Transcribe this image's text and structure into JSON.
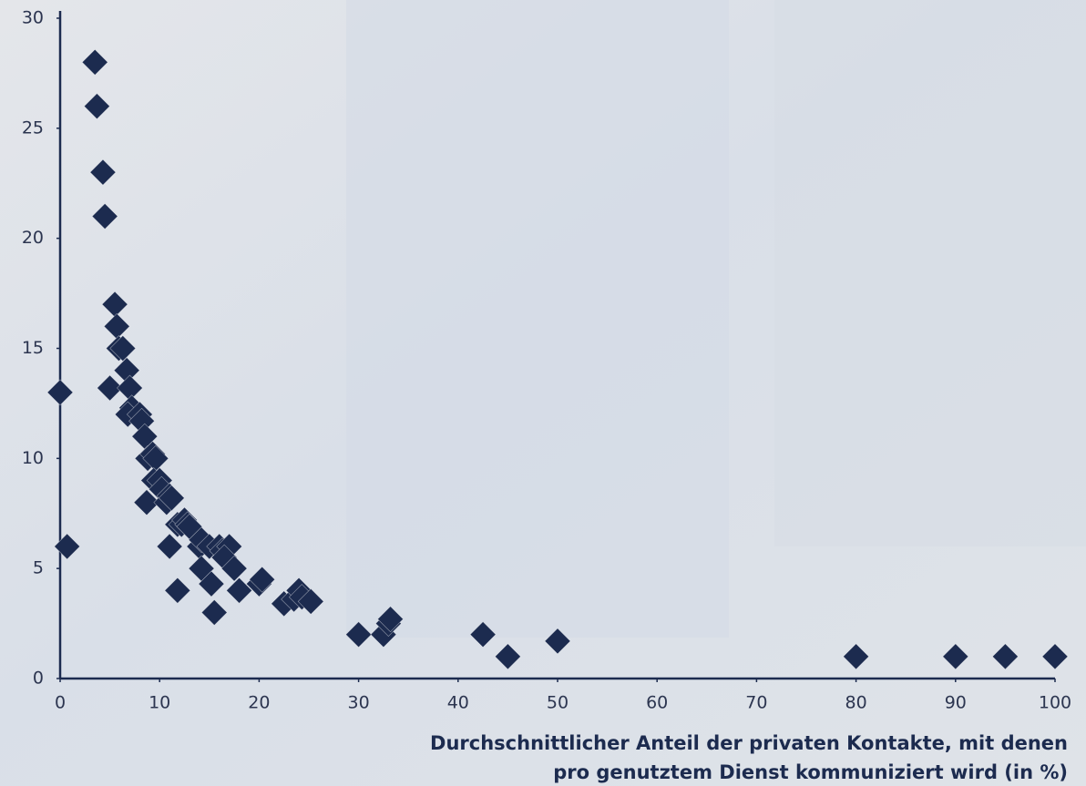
{
  "chart_data": {
    "type": "scatter",
    "xlabel": [
      "Durchschnittlicher Anteil der privaten Kontakte, mit denen",
      "pro genutztem Dienst kommuniziert wird (in %)"
    ],
    "color": "#1c2b4f",
    "x": [
      3.5,
      3.7,
      4.3,
      4.5,
      0,
      0.7,
      5.5,
      5.7,
      5.9,
      6.3,
      6.7,
      5,
      7,
      7.2,
      6.8,
      8,
      8.2,
      8.5,
      8.8,
      9.3,
      9.6,
      9.4,
      10,
      10.2,
      8.7,
      10.7,
      11,
      11.2,
      11.8,
      12.2,
      12.5,
      12.8,
      13,
      14,
      14.2,
      15,
      14.2,
      15.2,
      16,
      16.3,
      17,
      16.5,
      17.5,
      11,
      11.8,
      15.5,
      18,
      20,
      20.3,
      22.5,
      23.5,
      24,
      24.3,
      25.2,
      30,
      32.5,
      33,
      33.2,
      42.5,
      45,
      50,
      80,
      90,
      95,
      100
    ],
    "values": [
      28,
      26,
      23,
      21,
      13,
      6,
      17,
      16,
      15,
      15,
      14,
      13.2,
      13.2,
      12.3,
      12,
      12,
      11.7,
      11,
      10,
      10.2,
      10,
      9,
      9,
      8.6,
      8,
      8,
      8.3,
      8.2,
      7,
      7,
      7.2,
      7,
      6.9,
      6,
      6.3,
      6,
      5,
      4.3,
      6,
      5.8,
      6,
      5.5,
      5,
      6,
      4,
      3,
      4,
      4.3,
      4.5,
      3.4,
      3.6,
      4,
      3.7,
      3.5,
      2,
      2,
      2.5,
      2.7,
      2,
      1,
      1.7,
      1,
      1,
      1,
      1
    ],
    "xlim": [
      0,
      100
    ],
    "xticks": [
      0,
      10,
      20,
      30,
      40,
      50,
      60,
      70,
      80,
      90,
      100
    ],
    "ylim": [
      0,
      30
    ],
    "yticks": [
      0,
      5,
      10,
      15,
      20,
      25,
      30
    ]
  }
}
